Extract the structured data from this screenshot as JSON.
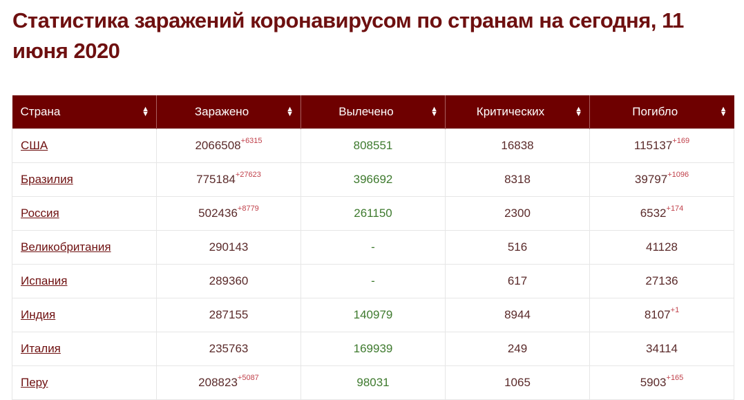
{
  "title": "Статистика заражений коронавирусом по странам на сегодня, 11 июня 2020",
  "colors": {
    "header_bg": "#6e0000",
    "title": "#6e1010",
    "recovered": "#3e7a2e",
    "delta": "#c0404a"
  },
  "columns": [
    "Страна",
    "Заражено",
    "Вылечено",
    "Критических",
    "Погибло"
  ],
  "sort_icon": "sort-up-down-icon",
  "rows": [
    {
      "country": "США",
      "infected": "2066508",
      "infected_delta": "+6315",
      "recovered": "808551",
      "critical": "16838",
      "deaths": "115137",
      "deaths_delta": "+169"
    },
    {
      "country": "Бразилия",
      "infected": "775184",
      "infected_delta": "+27623",
      "recovered": "396692",
      "critical": "8318",
      "deaths": "39797",
      "deaths_delta": "+1096"
    },
    {
      "country": "Россия",
      "infected": "502436",
      "infected_delta": "+8779",
      "recovered": "261150",
      "critical": "2300",
      "deaths": "6532",
      "deaths_delta": "+174"
    },
    {
      "country": "Великобритания",
      "infected": "290143",
      "infected_delta": "",
      "recovered": "-",
      "critical": "516",
      "deaths": "41128",
      "deaths_delta": ""
    },
    {
      "country": "Испания",
      "infected": "289360",
      "infected_delta": "",
      "recovered": "-",
      "critical": "617",
      "deaths": "27136",
      "deaths_delta": ""
    },
    {
      "country": "Индия",
      "infected": "287155",
      "infected_delta": "",
      "recovered": "140979",
      "critical": "8944",
      "deaths": "8107",
      "deaths_delta": "+1"
    },
    {
      "country": "Италия",
      "infected": "235763",
      "infected_delta": "",
      "recovered": "169939",
      "critical": "249",
      "deaths": "34114",
      "deaths_delta": ""
    },
    {
      "country": "Перу",
      "infected": "208823",
      "infected_delta": "+5087",
      "recovered": "98031",
      "critical": "1065",
      "deaths": "5903",
      "deaths_delta": "+165"
    }
  ]
}
